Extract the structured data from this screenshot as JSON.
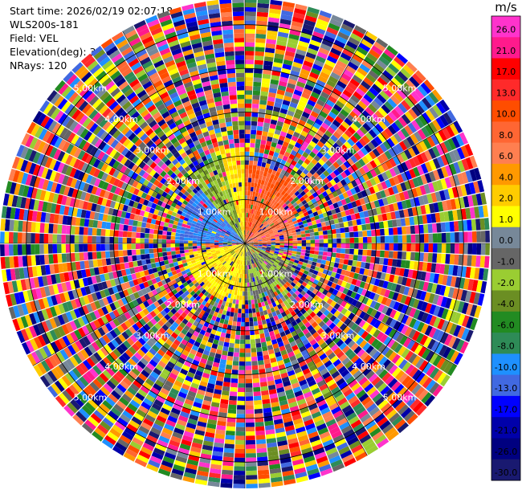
{
  "info": {
    "start_time": "Start time: 2026/02/19 02:07:18",
    "station": "WLS200s-181",
    "field": "Field: VEL",
    "elevation": "Elevation(deg): 35.00",
    "nrays": "NRays: 120"
  },
  "chart_data": {
    "type": "heatmap",
    "projection": "polar-ppi",
    "field": "VEL",
    "units": "m/s",
    "nrays": 120,
    "elevation_deg": 35.0,
    "range_rings_km": [
      1.0,
      2.0,
      3.0,
      4.0,
      5.0
    ],
    "range_ring_labels": [
      "1.00km",
      "2.00km",
      "3.00km",
      "4.00km",
      "5.00km"
    ],
    "max_range_km": 5.6,
    "spokes_deg": [
      0,
      30,
      60,
      90,
      120,
      150,
      180,
      210,
      240,
      270,
      300,
      330
    ],
    "colorbar": {
      "unit_label": "m/s",
      "ticks": [
        "26.0",
        "21.0",
        "17.0",
        "13.0",
        "10.0",
        "8.0",
        "6.0",
        "4.0",
        "2.0",
        "1.0",
        "0.0",
        "-1.0",
        "-2.0",
        "-4.0",
        "-6.0",
        "-8.0",
        "-10.0",
        "-13.0",
        "-17.0",
        "-21.0",
        "-26.0",
        "-30.0"
      ],
      "colors": [
        "#ff33cc",
        "#ff1a8c",
        "#ff0000",
        "#ff2a2a",
        "#ff4d00",
        "#ff6633",
        "#ff7f50",
        "#ff9900",
        "#ffcc00",
        "#ffff00",
        "#778899",
        "#666666",
        "#9acd32",
        "#6b8e23",
        "#228b22",
        "#2e8b57",
        "#1e90ff",
        "#4169e1",
        "#0000ff",
        "#0000aa",
        "#000080",
        "#191970"
      ]
    },
    "sectors": [
      {
        "az_from": 0,
        "az_to": 45,
        "range_km": [
          0.0,
          1.8
        ],
        "value_m_s": 10.0
      },
      {
        "az_from": 45,
        "az_to": 90,
        "range_km": [
          0.0,
          1.2
        ],
        "value_m_s": 8.0
      },
      {
        "az_from": 345,
        "az_to": 360,
        "range_km": [
          0.0,
          2.2
        ],
        "value_m_s": 2.0
      },
      {
        "az_from": 320,
        "az_to": 345,
        "range_km": [
          0.0,
          2.0
        ],
        "value_m_s": -2.0
      },
      {
        "az_from": 270,
        "az_to": 320,
        "range_km": [
          0.0,
          1.6
        ],
        "value_m_s": -10.0
      },
      {
        "az_from": 180,
        "az_to": 260,
        "range_km": [
          0.0,
          1.4
        ],
        "value_m_s": 2.0
      },
      {
        "az_from": 110,
        "az_to": 180,
        "range_km": [
          0.0,
          1.3
        ],
        "value_m_s": -1.0
      }
    ]
  }
}
